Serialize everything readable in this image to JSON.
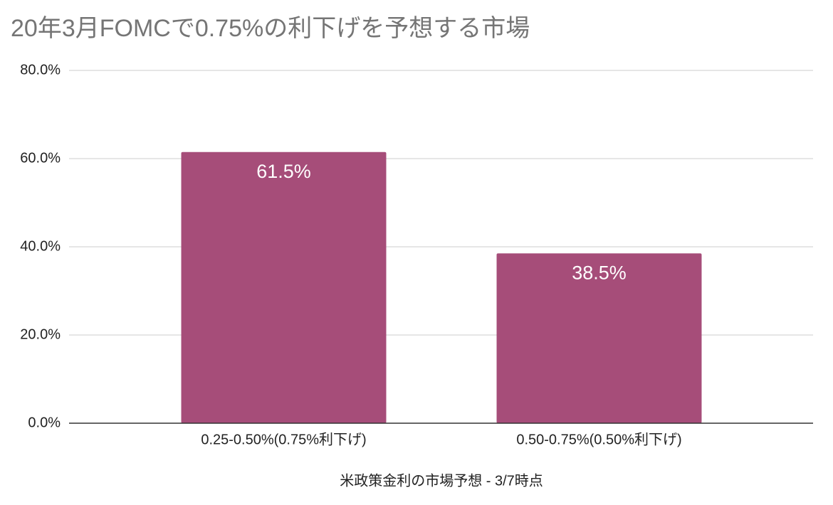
{
  "chart_data": {
    "type": "bar",
    "title": "20年3月FOMCで0.75%の利下げを予想する市場",
    "x_label": "米政策金利の市場予想 - 3/7時点",
    "categories": [
      "0.25-0.50%(0.75%利下げ)",
      "0.50-0.75%(0.50%利下げ)"
    ],
    "values": [
      61.5,
      38.5
    ],
    "value_labels": [
      "61.5%",
      "38.5%"
    ],
    "color": "#a64d79",
    "ylim": [
      0,
      80
    ],
    "yticks": [
      {
        "value": 0,
        "label": "0.0%"
      },
      {
        "value": 20,
        "label": "20.0%"
      },
      {
        "value": 40,
        "label": "40.0%"
      },
      {
        "value": 60,
        "label": "60.0%"
      },
      {
        "value": 80,
        "label": "80.0%"
      }
    ],
    "grid": true
  }
}
